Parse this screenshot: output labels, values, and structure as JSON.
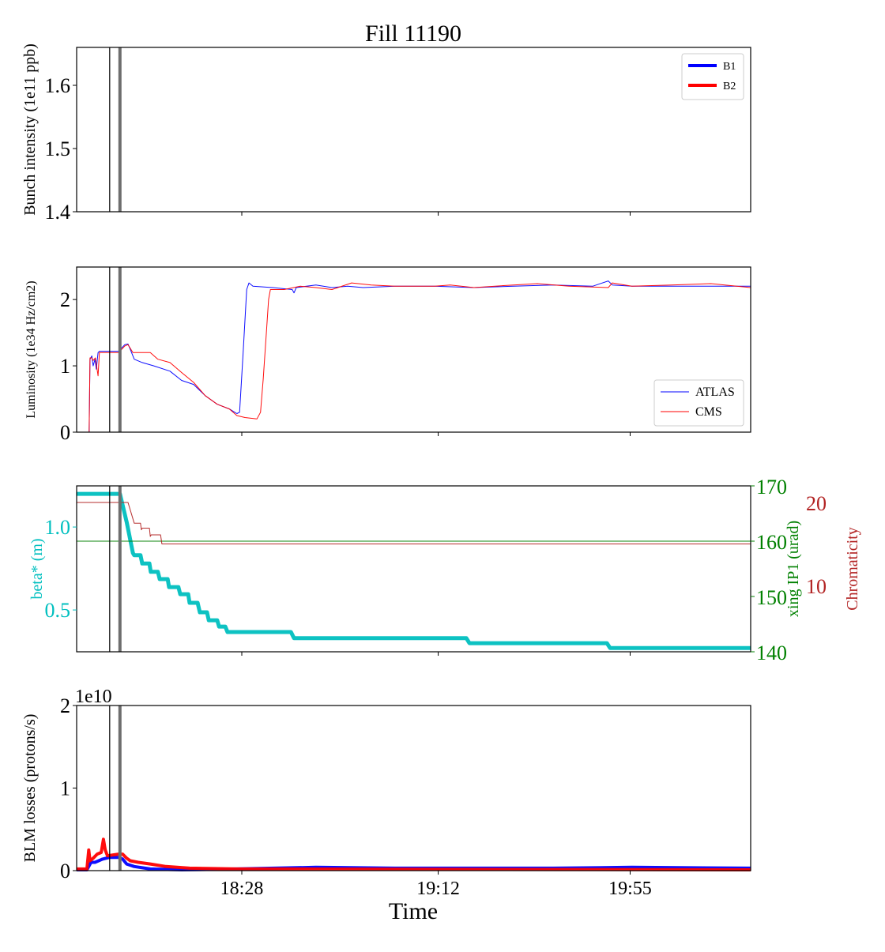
{
  "chart_data": {
    "type": "line",
    "title": "Fill 11190",
    "xlabel": "Time",
    "x_units": "minutes after 17:51",
    "xlim": [
      0,
      151
    ],
    "xticks": [
      {
        "value": 37,
        "label": "18:28"
      },
      {
        "value": 81,
        "label": "19:12"
      },
      {
        "value": 124,
        "label": "19:55"
      }
    ],
    "markers": [
      {
        "name": "black-marker-line",
        "x": 7.4,
        "color": "#000000"
      },
      {
        "name": "gray-marker-line",
        "x": 9.7,
        "color": "#6e6e6e"
      }
    ],
    "panels": [
      {
        "id": "intensity",
        "ylabel": "Bunch intensity (1e11 ppb)",
        "ylim": [
          1.4,
          1.66
        ],
        "yticks": [
          {
            "value": 1.4,
            "label": "1.4"
          },
          {
            "value": 1.5,
            "label": "1.5"
          },
          {
            "value": 1.6,
            "label": "1.6"
          }
        ],
        "legend": {
          "placement": "top-right",
          "entries": [
            {
              "label": "B1",
              "color": "#0000ff"
            },
            {
              "label": "B2",
              "color": "#ff0000"
            }
          ]
        },
        "series": []
      },
      {
        "id": "luminosity",
        "ylabel": "Luminosity (1e34 Hz/cm2)",
        "ylim": [
          0,
          2.49
        ],
        "yticks": [
          {
            "value": 0,
            "label": "0"
          },
          {
            "value": 1,
            "label": "1"
          },
          {
            "value": 2,
            "label": "2"
          }
        ],
        "legend": {
          "placement": "lower-right",
          "entries": [
            {
              "label": "ATLAS",
              "color": "#0000ff"
            },
            {
              "label": "CMS",
              "color": "#ff0000"
            }
          ]
        },
        "series": [
          {
            "name": "ATLAS",
            "color": "#0000ff",
            "width": 1,
            "x": [
              0,
              2.8,
              3.0,
              3.4,
              3.7,
              4.1,
              4.4,
              4.8,
              5.1,
              9.4,
              10.8,
              11.5,
              12.0,
              12.9,
              14.7,
              17.3,
              20.9,
              23.5,
              26.2,
              28.8,
              31.5,
              34.2,
              35.9,
              36.5,
              37.3,
              38.1,
              38.6,
              39.5,
              43.9,
              48.3,
              48.7,
              49.2,
              53.6,
              57.2,
              60.7,
              64.2,
              71.3,
              80.2,
              89.0,
              97.9,
              106.7,
              115.6,
              119.1,
              120.0,
              124.4,
              133.3,
              142.1,
              151
            ],
            "y": [
              0,
              0,
              1.1,
              1.15,
              1.0,
              1.1,
              0.95,
              1.2,
              1.22,
              1.22,
              1.32,
              1.33,
              1.25,
              1.1,
              1.05,
              1.0,
              0.92,
              0.78,
              0.72,
              0.55,
              0.42,
              0.35,
              0.28,
              0.3,
              1.2,
              2.15,
              2.25,
              2.2,
              2.18,
              2.15,
              2.1,
              2.18,
              2.22,
              2.18,
              2.2,
              2.18,
              2.2,
              2.2,
              2.18,
              2.2,
              2.22,
              2.2,
              2.28,
              2.22,
              2.2,
              2.2,
              2.2,
              2.2
            ]
          },
          {
            "name": "CMS",
            "color": "#ff0000",
            "width": 1,
            "x": [
              0,
              2.8,
              3.0,
              3.4,
              3.7,
              4.2,
              4.8,
              5.1,
              9.4,
              10.8,
              11.5,
              12.6,
              13.8,
              16.5,
              18.2,
              20.9,
              23.5,
              26.2,
              28.8,
              31.5,
              34.2,
              35.9,
              37.7,
              40.4,
              41.2,
              41.8,
              42.5,
              43.0,
              43.4,
              46.5,
              50.1,
              53.6,
              57.2,
              61.6,
              66.0,
              71.3,
              80.2,
              83.7,
              89.0,
              97.9,
              103.2,
              110.3,
              119.1,
              120.0,
              124.4,
              133.3,
              142.1,
              151
            ],
            "y": [
              0,
              0,
              1.12,
              1.12,
              1.08,
              1.12,
              0.85,
              1.2,
              1.2,
              1.3,
              1.32,
              1.2,
              1.2,
              1.2,
              1.1,
              1.05,
              0.9,
              0.75,
              0.55,
              0.42,
              0.35,
              0.25,
              0.22,
              0.2,
              0.3,
              0.8,
              1.5,
              2.0,
              2.15,
              2.15,
              2.2,
              2.18,
              2.15,
              2.25,
              2.22,
              2.2,
              2.2,
              2.22,
              2.18,
              2.22,
              2.24,
              2.2,
              2.18,
              2.25,
              2.2,
              2.22,
              2.24,
              2.18
            ]
          }
        ]
      },
      {
        "id": "optics",
        "ylabel": "beta* (m)",
        "ylabel_color": "#00bfbf",
        "ylim": [
          0.248,
          1.248
        ],
        "yticks": [
          {
            "value": 0.5,
            "label": "0.5"
          },
          {
            "value": 1.0,
            "label": "1.0"
          }
        ],
        "right_axes": [
          {
            "id": "xing",
            "ylabel": "xing IP1 (urad)",
            "color": "#008000",
            "ylim": [
              140,
              170
            ],
            "yticks": [
              {
                "value": 140,
                "label": "140"
              },
              {
                "value": 150,
                "label": "150"
              },
              {
                "value": 160,
                "label": "160"
              },
              {
                "value": 170,
                "label": "170"
              }
            ]
          },
          {
            "id": "chroma",
            "ylabel": "Chromaticity",
            "color": "#b22222",
            "ylim": [
              2,
              22
            ],
            "yticks": [
              {
                "value": 10,
                "label": "10"
              },
              {
                "value": 20,
                "label": "20"
              }
            ]
          }
        ],
        "series": [
          {
            "name": "beta*",
            "axis": "left",
            "color": "#00bfbf",
            "width": 5,
            "x": [
              0,
              9.7,
              11.2,
              12.6,
              12.9,
              14.3,
              14.7,
              16.3,
              16.6,
              18.2,
              18.6,
              20.4,
              20.7,
              22.8,
              23.2,
              25.0,
              25.3,
              27.1,
              27.6,
              29.2,
              29.6,
              31.5,
              31.9,
              33.3,
              33.8,
              48.0,
              48.7,
              87.3,
              88.0,
              118.8,
              119.5,
              151
            ],
            "y": [
              1.2,
              1.2,
              1.03,
              0.843,
              0.83,
              0.83,
              0.78,
              0.78,
              0.73,
              0.73,
              0.686,
              0.686,
              0.638,
              0.638,
              0.595,
              0.595,
              0.543,
              0.543,
              0.486,
              0.486,
              0.438,
              0.438,
              0.4,
              0.4,
              0.367,
              0.367,
              0.33,
              0.33,
              0.3,
              0.3,
              0.271,
              0.271
            ]
          },
          {
            "name": "xing IP1",
            "axis": "xing",
            "color": "#008000",
            "width": 1,
            "x": [
              0,
              151
            ],
            "y": [
              160,
              160
            ]
          },
          {
            "name": "Chromaticity",
            "axis": "chroma",
            "color": "#b22222",
            "width": 1,
            "x": [
              0,
              9.6,
              9.7,
              9.8,
              11.5,
              12.9,
              14.3,
              14.5,
              14.7,
              16.3,
              16.5,
              16.7,
              18.8,
              19.1,
              151
            ],
            "y": [
              20,
              20,
              17.5,
              20,
              20,
              17.5,
              17.5,
              16.7,
              16.9,
              16.9,
              15.9,
              16.1,
              16.1,
              15.0,
              15.0
            ]
          }
        ]
      },
      {
        "id": "blm",
        "ylabel": "BLM losses (protons/s)",
        "offset_text": "1e10",
        "ylim": [
          0,
          2
        ],
        "yticks": [
          {
            "value": 0,
            "label": "0"
          },
          {
            "value": 1,
            "label": "1"
          },
          {
            "value": 2,
            "label": "2"
          }
        ],
        "series": [
          {
            "name": "B1",
            "color": "#0000ff",
            "width": 4,
            "x": [
              0,
              2.3,
              3.2,
              4.1,
              5.8,
              7.3,
              9.4,
              10.3,
              11.2,
              12.9,
              16.5,
              23.5,
              35.9,
              53.6,
              71.3,
              106.7,
              124.4,
              151
            ],
            "y": [
              0.01,
              0.01,
              0.1,
              0.1,
              0.14,
              0.16,
              0.16,
              0.14,
              0.08,
              0.05,
              0.02,
              0.01,
              0.02,
              0.04,
              0.03,
              0.03,
              0.04,
              0.03
            ]
          },
          {
            "name": "B2",
            "color": "#ff0000",
            "width": 4,
            "x": [
              0,
              2.3,
              2.7,
              3.0,
              3.7,
              4.6,
              5.5,
              6.0,
              6.4,
              6.9,
              9.4,
              10.3,
              11.2,
              12.0,
              13.8,
              16.5,
              20.0,
              25.3,
              35.9,
              151
            ],
            "y": [
              0.02,
              0.02,
              0.25,
              0.12,
              0.15,
              0.2,
              0.22,
              0.38,
              0.25,
              0.18,
              0.2,
              0.2,
              0.15,
              0.12,
              0.1,
              0.08,
              0.05,
              0.03,
              0.02,
              0.01
            ]
          }
        ]
      }
    ]
  }
}
